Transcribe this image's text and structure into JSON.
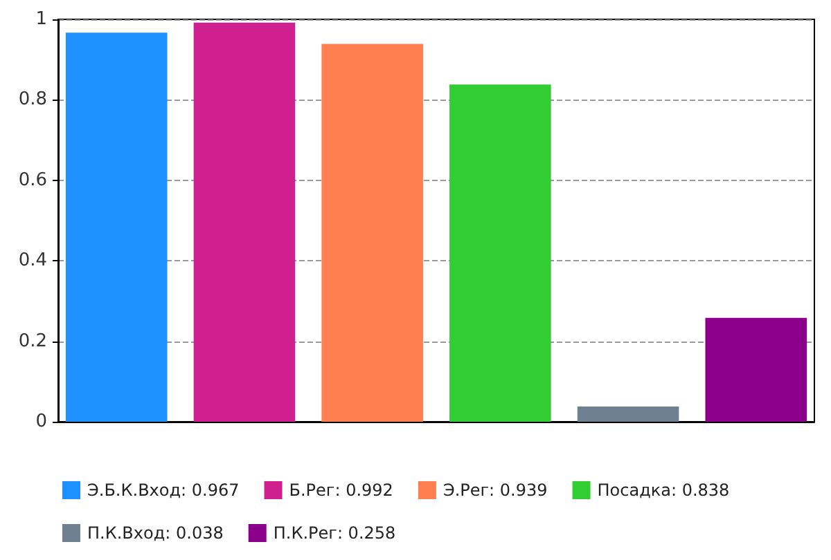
{
  "chart_data": {
    "type": "bar",
    "categories": [
      null
    ],
    "series": [
      {
        "name": "Э.Б.К.Вход: 0.967",
        "color": "#1e90ff",
        "values": [
          0.967
        ]
      },
      {
        "name": "Б.Рег: 0.992",
        "color": "#d02090",
        "values": [
          0.992
        ]
      },
      {
        "name": "Э.Рег: 0.939",
        "color": "#ff7f50",
        "values": [
          0.939
        ]
      },
      {
        "name": "Посадка: 0.838",
        "color": "#32cd32",
        "values": [
          0.838
        ]
      },
      {
        "name": "П.К.Вход: 0.038",
        "color": "#708090",
        "values": [
          0.038
        ]
      },
      {
        "name": "П.К.Рег: 0.258",
        "color": "#8b008b",
        "values": [
          0.258
        ]
      }
    ],
    "ylim": [
      0,
      1
    ],
    "yticks": [
      0,
      0.2,
      0.4,
      0.6,
      0.8,
      1
    ],
    "grid": "y",
    "legend": "bottom"
  }
}
